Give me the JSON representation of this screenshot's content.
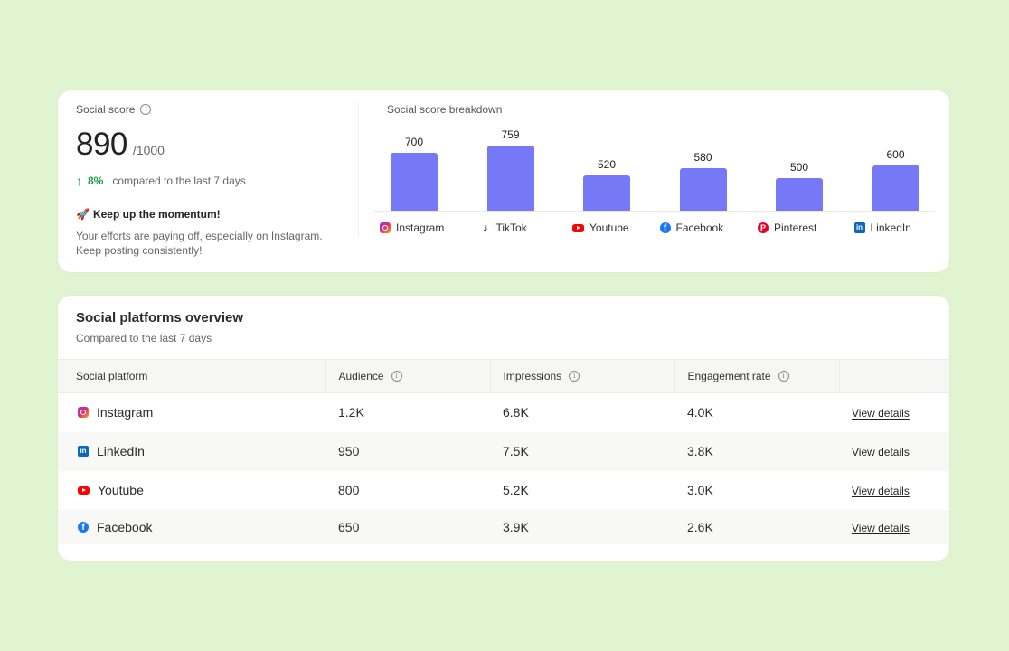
{
  "score": {
    "label": "Social score",
    "value": "890",
    "max": "/1000",
    "change_pct": "8%",
    "change_text": "compared to the last 7 days",
    "momentum_emoji": "🚀",
    "momentum_title": "Keep up the momentum!",
    "momentum_text": "Your efforts are paying off, especially on Instagram. Keep posting consistently!"
  },
  "breakdown": {
    "title": "Social score breakdown"
  },
  "chart_data": {
    "type": "bar",
    "title": "Social score breakdown",
    "categories": [
      "Instagram",
      "TikTok",
      "Youtube",
      "Facebook",
      "Pinterest",
      "LinkedIn"
    ],
    "values": [
      700,
      759,
      520,
      580,
      500,
      600
    ],
    "bar_color": "#7579f5"
  },
  "overview": {
    "title": "Social platforms overview",
    "subtitle": "Compared to the last 7 days",
    "columns": [
      "Social platform",
      "Audience",
      "Impressions",
      "Engagement rate"
    ],
    "rows": [
      {
        "platform": "Instagram",
        "icon": "instagram-icon",
        "audience": "1.2K",
        "impressions": "6.8K",
        "engagement": "4.0K",
        "action": "View details"
      },
      {
        "platform": "LinkedIn",
        "icon": "linkedin-icon",
        "audience": "950",
        "impressions": "7.5K",
        "engagement": "3.8K",
        "action": "View details"
      },
      {
        "platform": "Youtube",
        "icon": "youtube-icon",
        "audience": "800",
        "impressions": "5.2K",
        "engagement": "3.0K",
        "action": "View details"
      },
      {
        "platform": "Facebook",
        "icon": "facebook-icon",
        "audience": "650",
        "impressions": "3.9K",
        "engagement": "2.6K",
        "action": "View details"
      }
    ]
  },
  "colors": {
    "background": "#e1f4d1",
    "accent_bar": "#7579f5",
    "positive": "#1e9e52"
  }
}
